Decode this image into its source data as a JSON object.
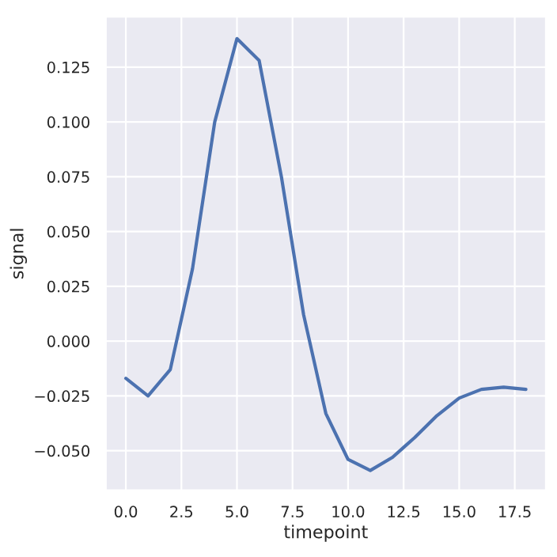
{
  "chart_data": {
    "type": "line",
    "xlabel": "timepoint",
    "ylabel": "signal",
    "x": [
      0,
      1,
      2,
      3,
      4,
      5,
      6,
      7,
      8,
      9,
      10,
      11,
      12,
      13,
      14,
      15,
      16,
      17,
      18
    ],
    "series": [
      {
        "color": "#4c72b0",
        "values": [
          -0.017,
          -0.025,
          -0.013,
          0.033,
          0.1,
          0.138,
          0.128,
          0.075,
          0.012,
          -0.033,
          -0.054,
          -0.059,
          -0.053,
          -0.044,
          -0.034,
          -0.026,
          -0.022,
          -0.021,
          -0.022
        ]
      }
    ],
    "xlim": [
      -0.9,
      18.9
    ],
    "ylim": [
      -0.068,
      0.148
    ],
    "xticks": [
      {
        "value": 0,
        "label": "0.0"
      },
      {
        "value": 2.5,
        "label": "2.5"
      },
      {
        "value": 5,
        "label": "5.0"
      },
      {
        "value": 7.5,
        "label": "7.5"
      },
      {
        "value": 10,
        "label": "10.0"
      },
      {
        "value": 12.5,
        "label": "12.5"
      },
      {
        "value": 15,
        "label": "15.0"
      },
      {
        "value": 17.5,
        "label": "17.5"
      }
    ],
    "yticks": [
      {
        "value": -0.05,
        "label": "−0.050"
      },
      {
        "value": -0.025,
        "label": "−0.025"
      },
      {
        "value": 0,
        "label": "0.000"
      },
      {
        "value": 0.025,
        "label": "0.025"
      },
      {
        "value": 0.05,
        "label": "0.050"
      },
      {
        "value": 0.075,
        "label": "0.075"
      },
      {
        "value": 0.1,
        "label": "0.100"
      },
      {
        "value": 0.125,
        "label": "0.125"
      }
    ],
    "grid": true,
    "line_style": "solid",
    "marker": "none"
  }
}
